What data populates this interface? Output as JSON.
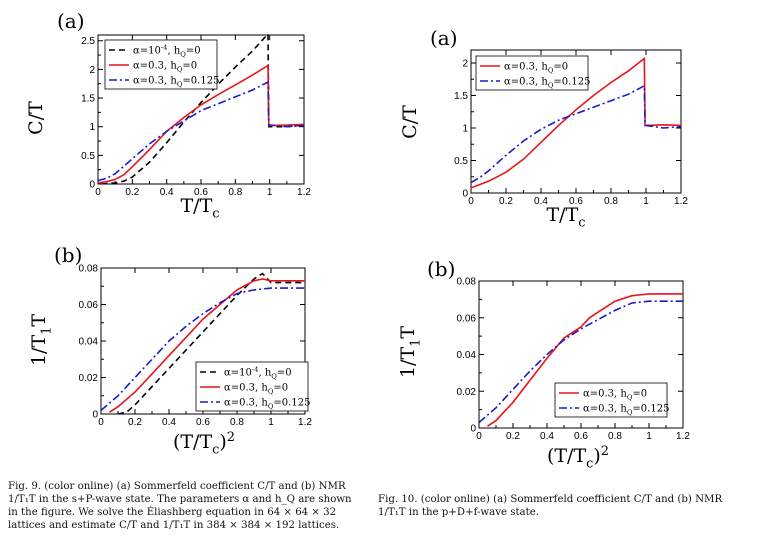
{
  "figure9": {
    "caption": "Fig. 9.  (color online) (a) Sommerfeld coefficient C/T and (b) NMR 1/T₁T in the s+P-wave state. The parameters α and h_Q are shown in the figure. We solve the Éliashberg equation in 64 × 64 × 32 lattices and estimate C/T and 1/T₁T in 384 × 384 × 192 lattices."
  },
  "figure10": {
    "caption": "Fig. 10.  (color online) (a) Sommerfeld coefficient C/T and (b) NMR 1/T₁T in the p+D+f-wave state."
  },
  "colors": {
    "black": "#000000",
    "red": "#e8141a",
    "blue": "#1a1acc"
  },
  "chart_data": [
    {
      "panel_label": "(a)",
      "type": "line",
      "xlabel": "T/T_c",
      "ylabel": "C/T",
      "xlim": [
        0,
        1.2
      ],
      "ylim": [
        0,
        2.6
      ],
      "xticks": [
        "0",
        "0.2",
        "0.4",
        "0.6",
        "0.8",
        "1",
        "1.2"
      ],
      "xtick_values": [
        0,
        0.2,
        0.4,
        0.6,
        0.8,
        1,
        1.2
      ],
      "yticks": [
        "0",
        "0.5",
        "1",
        "1.5",
        "2",
        "2.5"
      ],
      "ytick_values": [
        0,
        0.5,
        1,
        1.5,
        2,
        2.5
      ],
      "legend": "top-left",
      "series": [
        {
          "name": "α=10⁻⁴, h_Q=0",
          "color": "#000000",
          "dash": "6,4",
          "x": [
            0.02,
            0.1,
            0.15,
            0.2,
            0.3,
            0.4,
            0.5,
            0.6,
            0.7,
            0.8,
            0.9,
            0.99,
            0.995,
            1.0,
            1.1,
            1.2
          ],
          "y": [
            0,
            0.02,
            0.05,
            0.12,
            0.38,
            0.72,
            1.08,
            1.42,
            1.74,
            2.04,
            2.32,
            2.62,
            1.0,
            1.0,
            1.0,
            1.03
          ]
        },
        {
          "name": "α=0.3, h_Q=0",
          "color": "#e8141a",
          "dash": "",
          "x": [
            0.0,
            0.05,
            0.1,
            0.15,
            0.2,
            0.3,
            0.4,
            0.5,
            0.6,
            0.7,
            0.8,
            0.9,
            0.99,
            0.995,
            1.0,
            1.1,
            1.2
          ],
          "y": [
            0.02,
            0.04,
            0.08,
            0.16,
            0.3,
            0.6,
            0.92,
            1.16,
            1.38,
            1.56,
            1.73,
            1.9,
            2.07,
            1.02,
            1.02,
            1.03,
            1.04
          ]
        },
        {
          "name": "α=0.3, h_Q=0.125",
          "color": "#1a1acc",
          "dash": "8,3,2,3",
          "x": [
            0.0,
            0.05,
            0.1,
            0.2,
            0.3,
            0.4,
            0.5,
            0.6,
            0.7,
            0.8,
            0.9,
            0.99,
            0.995,
            1.0,
            1.1,
            1.2
          ],
          "y": [
            0.06,
            0.1,
            0.18,
            0.44,
            0.7,
            0.92,
            1.1,
            1.28,
            1.4,
            1.52,
            1.64,
            1.78,
            1.03,
            1.03,
            1.0,
            1.02
          ]
        }
      ]
    },
    {
      "panel_label": "(b)",
      "type": "line",
      "xlabel": "(T/T_c)²",
      "ylabel": "1/T₁T",
      "xlim": [
        0,
        1.2
      ],
      "ylim": [
        0,
        0.08
      ],
      "xticks": [
        "0",
        "0.2",
        "0.4",
        "0.6",
        "0.8",
        "1",
        "1.2"
      ],
      "xtick_values": [
        0,
        0.2,
        0.4,
        0.6,
        0.8,
        1,
        1.2
      ],
      "yticks": [
        "0",
        "0.02",
        "0.04",
        "0.06",
        "0.08"
      ],
      "ytick_values": [
        0,
        0.02,
        0.04,
        0.06,
        0.08
      ],
      "legend": "bottom-right",
      "series": [
        {
          "name": "α=10⁻⁴, h_Q=0",
          "color": "#000000",
          "dash": "6,4",
          "x": [
            0.1,
            0.15,
            0.2,
            0.3,
            0.4,
            0.5,
            0.6,
            0.7,
            0.8,
            0.9,
            0.95,
            1.0,
            1.2
          ],
          "y": [
            0,
            0.001,
            0.005,
            0.015,
            0.025,
            0.035,
            0.045,
            0.055,
            0.065,
            0.074,
            0.077,
            0.072,
            0.072
          ]
        },
        {
          "name": "α=0.3, h_Q=0",
          "color": "#e8141a",
          "dash": "",
          "x": [
            0.05,
            0.1,
            0.2,
            0.3,
            0.4,
            0.5,
            0.6,
            0.7,
            0.8,
            0.9,
            0.95,
            1.0,
            1.2
          ],
          "y": [
            0.001,
            0.004,
            0.012,
            0.022,
            0.032,
            0.042,
            0.052,
            0.06,
            0.068,
            0.073,
            0.074,
            0.073,
            0.073
          ]
        },
        {
          "name": "α=0.3, h_Q=0.125",
          "color": "#1a1acc",
          "dash": "8,3,2,3",
          "x": [
            0.0,
            0.05,
            0.1,
            0.2,
            0.3,
            0.4,
            0.5,
            0.6,
            0.7,
            0.8,
            0.9,
            1.0,
            1.2
          ],
          "y": [
            0.002,
            0.006,
            0.01,
            0.02,
            0.03,
            0.04,
            0.048,
            0.055,
            0.061,
            0.066,
            0.068,
            0.069,
            0.069
          ]
        }
      ]
    },
    {
      "panel_label": "(a)",
      "type": "line",
      "xlabel": "T/T_c",
      "ylabel": "C/T",
      "xlim": [
        0,
        1.2
      ],
      "ylim": [
        0,
        2.2
      ],
      "xticks": [
        "0",
        "0.2",
        "0.4",
        "0.6",
        "0.8",
        "1",
        "1.2"
      ],
      "xtick_values": [
        0,
        0.2,
        0.4,
        0.6,
        0.8,
        1,
        1.2
      ],
      "yticks": [
        "0",
        "0.5",
        "1",
        "1.5",
        "2"
      ],
      "ytick_values": [
        0,
        0.5,
        1,
        1.5,
        2
      ],
      "legend": "top-left",
      "series": [
        {
          "name": "α=0.3, h_Q=0",
          "color": "#e8141a",
          "dash": "",
          "x": [
            0.0,
            0.1,
            0.2,
            0.3,
            0.4,
            0.5,
            0.6,
            0.7,
            0.8,
            0.9,
            0.99,
            0.995,
            1.0,
            1.1,
            1.2
          ],
          "y": [
            0.08,
            0.18,
            0.32,
            0.52,
            0.78,
            1.04,
            1.28,
            1.5,
            1.7,
            1.88,
            2.07,
            1.04,
            1.04,
            1.05,
            1.04
          ]
        },
        {
          "name": "α=0.3, h_Q=0.125",
          "color": "#1a1acc",
          "dash": "8,3,2,3",
          "x": [
            0.0,
            0.05,
            0.1,
            0.2,
            0.3,
            0.4,
            0.5,
            0.6,
            0.7,
            0.8,
            0.9,
            0.99,
            0.995,
            1.0,
            1.1,
            1.2
          ],
          "y": [
            0.16,
            0.24,
            0.34,
            0.58,
            0.8,
            0.98,
            1.12,
            1.22,
            1.32,
            1.42,
            1.52,
            1.65,
            1.04,
            1.04,
            1.0,
            1.02
          ]
        }
      ]
    },
    {
      "panel_label": "(b)",
      "type": "line",
      "xlabel": "(T/T_c)²",
      "ylabel": "1/T₁T",
      "xlim": [
        0,
        1.2
      ],
      "ylim": [
        0,
        0.08
      ],
      "xticks": [
        "0",
        "0.2",
        "0.4",
        "0.6",
        "0.8",
        "1",
        "1.2"
      ],
      "xtick_values": [
        0,
        0.2,
        0.4,
        0.6,
        0.8,
        1,
        1.2
      ],
      "yticks": [
        "0",
        "0.02",
        "0.04",
        "0.06",
        "0.08"
      ],
      "ytick_values": [
        0,
        0.02,
        0.04,
        0.06,
        0.08
      ],
      "legend": "bottom-right",
      "series": [
        {
          "name": "α=0.3, h_Q=0",
          "color": "#e8141a",
          "dash": "",
          "x": [
            0.05,
            0.1,
            0.2,
            0.3,
            0.4,
            0.5,
            0.6,
            0.65,
            0.7,
            0.8,
            0.9,
            1.0,
            1.2
          ],
          "y": [
            0.001,
            0.004,
            0.014,
            0.026,
            0.038,
            0.049,
            0.055,
            0.06,
            0.063,
            0.069,
            0.072,
            0.073,
            0.073
          ]
        },
        {
          "name": "α=0.3, h_Q=0.125",
          "color": "#1a1acc",
          "dash": "8,3,2,3",
          "x": [
            0.0,
            0.05,
            0.1,
            0.2,
            0.3,
            0.4,
            0.5,
            0.6,
            0.7,
            0.8,
            0.9,
            1.0,
            1.2
          ],
          "y": [
            0.003,
            0.007,
            0.011,
            0.021,
            0.031,
            0.04,
            0.048,
            0.054,
            0.059,
            0.064,
            0.068,
            0.069,
            0.069
          ]
        }
      ]
    }
  ]
}
